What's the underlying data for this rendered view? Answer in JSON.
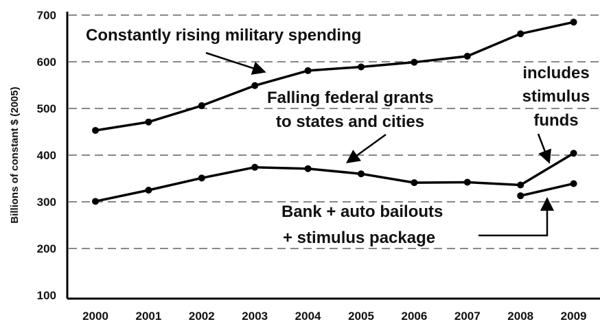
{
  "chart_data": {
    "type": "line",
    "ylabel": "Billions of constant $ (2005)",
    "ylim": [
      100,
      700
    ],
    "yticks": [
      100,
      200,
      300,
      400,
      500,
      600,
      700
    ],
    "grid": "dashed horizontal",
    "x": [
      "2000",
      "2001",
      "2002",
      "2003",
      "2004",
      "2005",
      "2006",
      "2007",
      "2008",
      "2009"
    ],
    "series": [
      {
        "key": "military",
        "values": [
          453,
          471,
          506,
          549,
          581,
          589,
          599,
          612,
          660,
          685
        ]
      },
      {
        "key": "grants",
        "values": [
          301,
          325,
          351,
          374,
          371,
          360,
          341,
          342,
          336,
          404
        ]
      },
      {
        "key": "bailouts",
        "x": [
          "2008",
          "2009"
        ],
        "values": [
          313,
          339
        ]
      }
    ],
    "annotations": {
      "military": "Constantly rising military spending",
      "grants_line1": "Falling federal grants",
      "grants_line2": "to states and cities",
      "stimulus_line1": "includes",
      "stimulus_line2": "stimulus",
      "stimulus_line3": "funds",
      "bailouts_line1": "Bank + auto bailouts",
      "bailouts_line2": "+ stimulus package"
    }
  }
}
